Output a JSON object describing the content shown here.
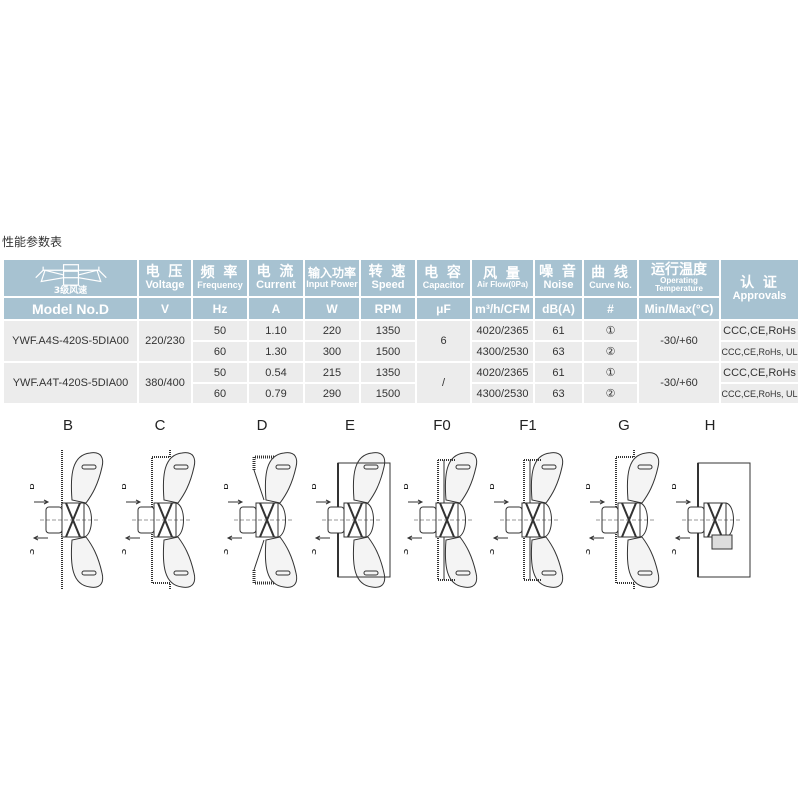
{
  "section_title": "性能参数表",
  "header": {
    "logo_label": "3级风速",
    "columns": [
      {
        "cn": "",
        "en": "",
        "unit": "Model No.D"
      },
      {
        "cn": "电 压",
        "en": "Voltage",
        "unit": "V"
      },
      {
        "cn": "频 率",
        "en": "Frequency",
        "unit": "Hz"
      },
      {
        "cn": "电 流",
        "en": "Current",
        "unit": "A"
      },
      {
        "cn": "输入功率",
        "en": "Input Power",
        "unit": "W"
      },
      {
        "cn": "转 速",
        "en": "Speed",
        "unit": "RPM"
      },
      {
        "cn": "电 容",
        "en": "Capacitor",
        "unit": "μF"
      },
      {
        "cn": "风 量",
        "en": "Air Flow(0Pa)",
        "unit": "m³/h/CFM"
      },
      {
        "cn": "噪 音",
        "en": "Noise",
        "unit": "dB(A)"
      },
      {
        "cn": "曲 线",
        "en": "Curve No.",
        "unit": "#"
      },
      {
        "cn": "运行温度",
        "en": "Operating Temperature",
        "unit": "Min/Max(°C)"
      },
      {
        "cn": "认 证",
        "en": "Approvals",
        "unit": ""
      }
    ]
  },
  "models": [
    {
      "model": "YWF.A4S-420S-5DIA00",
      "voltage": "220/230",
      "capacitor": "6",
      "temperature": "-30/+60",
      "rows": [
        {
          "frequency": "50",
          "current": "1.10",
          "power": "220",
          "speed": "1350",
          "airflow": "4020/2365",
          "noise": "61",
          "curve": "①",
          "approvals": "CCC,CE,RoHs"
        },
        {
          "frequency": "60",
          "current": "1.30",
          "power": "300",
          "speed": "1500",
          "airflow": "4300/2530",
          "noise": "63",
          "curve": "②",
          "approvals": "CCC,CE,RoHs, UL"
        }
      ]
    },
    {
      "model": "YWF.A4T-420S-5DIA00",
      "voltage": "380/400",
      "capacitor": "/",
      "temperature": "-30/+60",
      "rows": [
        {
          "frequency": "50",
          "current": "0.54",
          "power": "215",
          "speed": "1350",
          "airflow": "4020/2365",
          "noise": "61",
          "curve": "①",
          "approvals": "CCC,CE,RoHs"
        },
        {
          "frequency": "60",
          "current": "0.79",
          "power": "290",
          "speed": "1500",
          "airflow": "4300/2530",
          "noise": "63",
          "curve": "②",
          "approvals": "CCC,CE,RoHs, UL"
        }
      ]
    }
  ],
  "mounting_types": [
    "B",
    "C",
    "D",
    "E",
    "F0",
    "F1",
    "G",
    "H"
  ],
  "drawing_labels": {
    "blow": "B",
    "suck": "S"
  },
  "colors": {
    "header_bg": "#a7c2d1",
    "row_bg": "#ececec"
  }
}
